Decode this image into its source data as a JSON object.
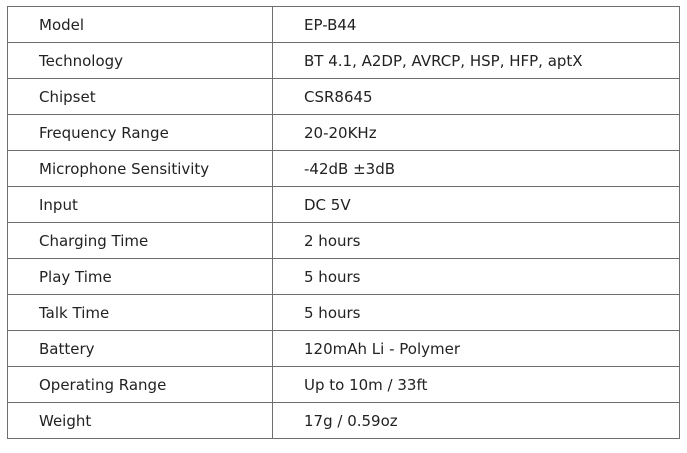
{
  "specs": [
    {
      "label": "Model",
      "value": "EP-B44"
    },
    {
      "label": "Technology",
      "value": "BT 4.1, A2DP, AVRCP, HSP, HFP, aptX"
    },
    {
      "label": "Chipset",
      "value": "CSR8645"
    },
    {
      "label": "Frequency Range",
      "value": "20-20KHz"
    },
    {
      "label": "Microphone Sensitivity",
      "value": "-42dB ±3dB"
    },
    {
      "label": "Input",
      "value": "DC 5V"
    },
    {
      "label": "Charging Time",
      "value": "2 hours"
    },
    {
      "label": "Play Time",
      "value": "5 hours"
    },
    {
      "label": "Talk Time",
      "value": "5 hours"
    },
    {
      "label": "Battery",
      "value": "120mAh Li - Polymer"
    },
    {
      "label": "Operating Range",
      "value": "Up to 10m / 33ft"
    },
    {
      "label": "Weight",
      "value": "17g / 0.59oz"
    }
  ]
}
